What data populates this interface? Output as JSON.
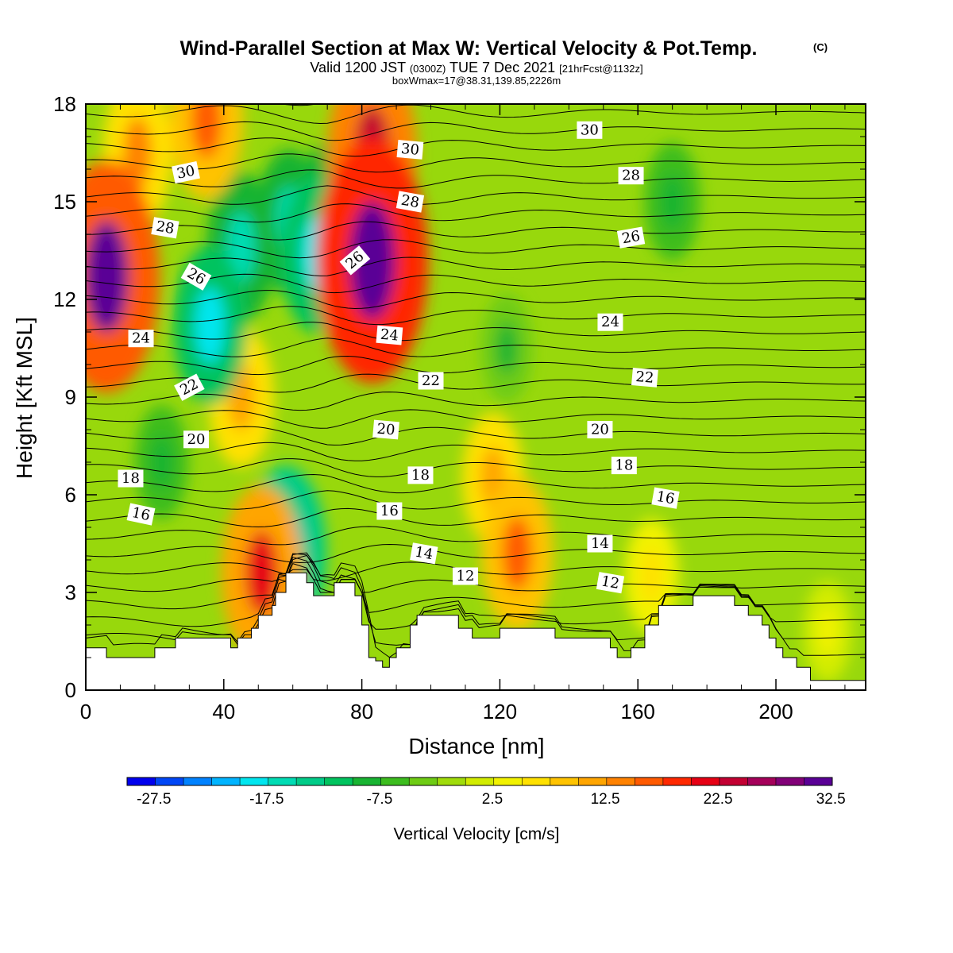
{
  "title": {
    "main": "Wind-Parallel Section at Max W: Vertical Velocity & Pot.Temp.",
    "copyright": "(C)",
    "valid_prefix": "Valid 1200 JST",
    "valid_utc": "(0300Z)",
    "valid_date": "TUE 7 Dec 2021",
    "forecast": "[21hrFcst@1132z]",
    "box_info": "boxWmax=17@38.31,139.85,2226m"
  },
  "colorbar": {
    "title": "Vertical Velocity [cm/s]",
    "labels": [
      "-27.5",
      "-17.5",
      "-7.5",
      "2.5",
      "12.5",
      "22.5",
      "32.5"
    ],
    "colors": [
      "#0000ee",
      "#0046f6",
      "#0082ff",
      "#00b4ff",
      "#00e6ef",
      "#00dcb4",
      "#00cc88",
      "#00c35e",
      "#18b432",
      "#3cbd1e",
      "#6ecc14",
      "#a0dc0a",
      "#d2ec00",
      "#f2f200",
      "#ffe100",
      "#ffc300",
      "#ffa500",
      "#ff8200",
      "#ff5a00",
      "#ff2800",
      "#e60014",
      "#c30032",
      "#a5005a",
      "#820078",
      "#5a0096"
    ]
  },
  "chart_data": {
    "type": "heatmap",
    "title": "Wind-Parallel Section at Max W: Vertical Velocity & Pot.Temp.",
    "xlabel": "Distance [nm]",
    "ylabel": "Height [Kft MSL]",
    "xlim": [
      0,
      226
    ],
    "ylim": [
      0,
      18
    ],
    "x_ticks": [
      0,
      40,
      80,
      120,
      160,
      200
    ],
    "y_ticks": [
      0,
      3,
      6,
      9,
      12,
      15,
      18
    ],
    "fill_variable": "Vertical Velocity [cm/s]",
    "fill_range": [
      -30,
      35
    ],
    "terrain": {
      "distance_nm": [
        0,
        6,
        20,
        26,
        40,
        42,
        44,
        48,
        50,
        54,
        55,
        58,
        62,
        64,
        66,
        70,
        72,
        76,
        78,
        80,
        82,
        84,
        86,
        88,
        90,
        94,
        96,
        98,
        104,
        108,
        112,
        116,
        120,
        132,
        136,
        140,
        148,
        152,
        154,
        158,
        162,
        166,
        172,
        176,
        184,
        188,
        192,
        196,
        198,
        200,
        202,
        206,
        210,
        220,
        226
      ],
      "height_kft": [
        1.3,
        1.0,
        1.3,
        1.6,
        1.6,
        1.3,
        1.6,
        1.9,
        2.3,
        2.6,
        3.0,
        3.6,
        3.6,
        3.3,
        2.9,
        2.9,
        3.3,
        3.3,
        2.9,
        2.0,
        1.0,
        0.9,
        0.7,
        1.0,
        1.3,
        2.0,
        2.3,
        2.3,
        2.3,
        1.9,
        1.6,
        1.6,
        1.9,
        1.9,
        1.6,
        1.6,
        1.6,
        1.3,
        1.0,
        1.3,
        2.0,
        2.6,
        2.6,
        2.9,
        2.9,
        2.6,
        2.3,
        2.0,
        1.6,
        1.3,
        1.0,
        0.7,
        0.3,
        0.3,
        0.3
      ]
    },
    "vertical_velocity_features": [
      {
        "x_nm": 6,
        "z_kft": 12.7,
        "w_cm_s": 35
      },
      {
        "x_nm": 83,
        "z_kft": 13.2,
        "w_cm_s": 38
      },
      {
        "x_nm": 83,
        "z_kft": 16.5,
        "w_cm_s": 26
      },
      {
        "x_nm": 35,
        "z_kft": 17.5,
        "w_cm_s": 18
      },
      {
        "x_nm": 15,
        "z_kft": 16.5,
        "w_cm_s": 16
      },
      {
        "x_nm": 36,
        "z_kft": 11.2,
        "w_cm_s": -18
      },
      {
        "x_nm": 45,
        "z_kft": 13.6,
        "w_cm_s": -16
      },
      {
        "x_nm": 59,
        "z_kft": 14.4,
        "w_cm_s": -15
      },
      {
        "x_nm": 67,
        "z_kft": 13.4,
        "w_cm_s": -18
      },
      {
        "x_nm": 71,
        "z_kft": 14.7,
        "w_cm_s": -14
      },
      {
        "x_nm": 58,
        "z_kft": 4.2,
        "w_cm_s": -22
      },
      {
        "x_nm": 45,
        "z_kft": 9.0,
        "w_cm_s": 14
      },
      {
        "x_nm": 51,
        "z_kft": 3.6,
        "w_cm_s": 22
      },
      {
        "x_nm": 125,
        "z_kft": 4.2,
        "w_cm_s": 17
      },
      {
        "x_nm": 164,
        "z_kft": 3.5,
        "w_cm_s": 8
      },
      {
        "x_nm": 118,
        "z_kft": 6.5,
        "w_cm_s": 12
      },
      {
        "x_nm": 170,
        "z_kft": 15.0,
        "w_cm_s": -9
      },
      {
        "x_nm": 122,
        "z_kft": 10.5,
        "w_cm_s": -7
      },
      {
        "x_nm": 22,
        "z_kft": 7.0,
        "w_cm_s": -8
      },
      {
        "x_nm": 215,
        "z_kft": 1.8,
        "w_cm_s": 5
      }
    ],
    "contour_variable": "Pot.Temp.",
    "contour_labels": [
      {
        "text": "30",
        "x_nm": 29,
        "z_kft": 15.9,
        "angle": 12
      },
      {
        "text": "28",
        "x_nm": 23,
        "z_kft": 14.2,
        "angle": -10
      },
      {
        "text": "26",
        "x_nm": 32,
        "z_kft": 12.7,
        "angle": -30
      },
      {
        "text": "24",
        "x_nm": 16,
        "z_kft": 10.8,
        "angle": 0
      },
      {
        "text": "22",
        "x_nm": 30,
        "z_kft": 9.3,
        "angle": 28
      },
      {
        "text": "20",
        "x_nm": 32,
        "z_kft": 7.7,
        "angle": 0
      },
      {
        "text": "18",
        "x_nm": 13,
        "z_kft": 6.5,
        "angle": 0
      },
      {
        "text": "16",
        "x_nm": 16,
        "z_kft": 5.4,
        "angle": -12
      },
      {
        "text": "30",
        "x_nm": 94,
        "z_kft": 16.6,
        "angle": -5
      },
      {
        "text": "28",
        "x_nm": 94,
        "z_kft": 15.0,
        "angle": -10
      },
      {
        "text": "26",
        "x_nm": 78,
        "z_kft": 13.2,
        "angle": 40
      },
      {
        "text": "24",
        "x_nm": 88,
        "z_kft": 10.9,
        "angle": -5
      },
      {
        "text": "22",
        "x_nm": 100,
        "z_kft": 9.5,
        "angle": 0
      },
      {
        "text": "20",
        "x_nm": 87,
        "z_kft": 8.0,
        "angle": -5
      },
      {
        "text": "18",
        "x_nm": 97,
        "z_kft": 6.6,
        "angle": 0
      },
      {
        "text": "16",
        "x_nm": 88,
        "z_kft": 5.5,
        "angle": 0
      },
      {
        "text": "14",
        "x_nm": 98,
        "z_kft": 4.2,
        "angle": -10
      },
      {
        "text": "12",
        "x_nm": 110,
        "z_kft": 3.5,
        "angle": 0
      },
      {
        "text": "30",
        "x_nm": 146,
        "z_kft": 17.2,
        "angle": 0
      },
      {
        "text": "28",
        "x_nm": 158,
        "z_kft": 15.8,
        "angle": 0
      },
      {
        "text": "26",
        "x_nm": 158,
        "z_kft": 13.9,
        "angle": 10
      },
      {
        "text": "24",
        "x_nm": 152,
        "z_kft": 11.3,
        "angle": 0
      },
      {
        "text": "22",
        "x_nm": 162,
        "z_kft": 9.6,
        "angle": -5
      },
      {
        "text": "20",
        "x_nm": 149,
        "z_kft": 8.0,
        "angle": 0
      },
      {
        "text": "18",
        "x_nm": 156,
        "z_kft": 6.9,
        "angle": 0
      },
      {
        "text": "16",
        "x_nm": 168,
        "z_kft": 5.9,
        "angle": -10
      },
      {
        "text": "14",
        "x_nm": 149,
        "z_kft": 4.5,
        "angle": 0
      },
      {
        "text": "12",
        "x_nm": 152,
        "z_kft": 3.3,
        "angle": -10
      }
    ]
  }
}
